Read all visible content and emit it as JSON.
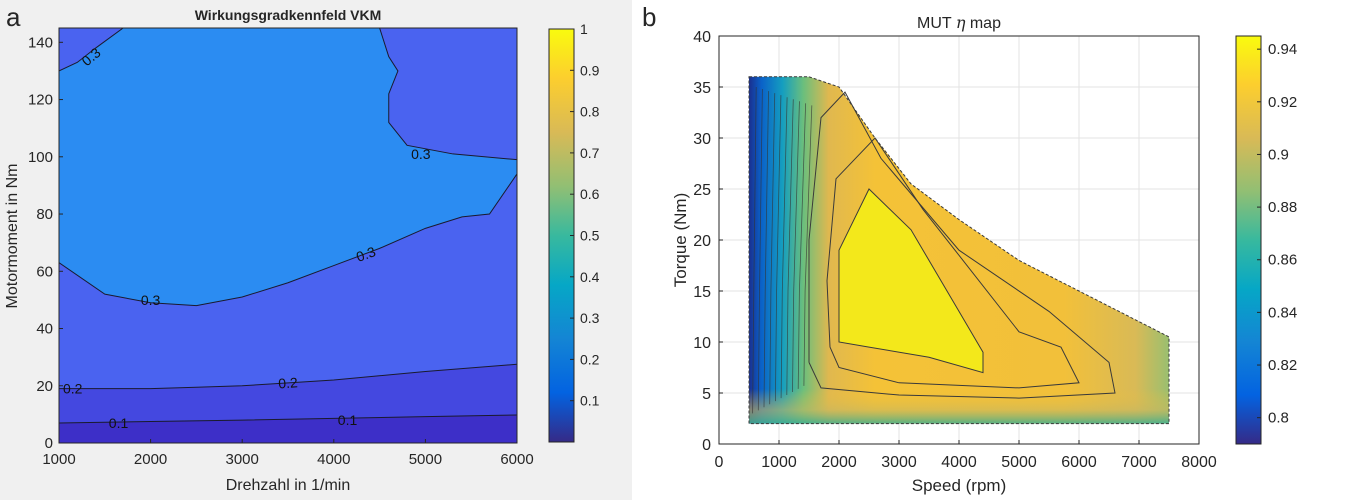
{
  "panels": {
    "a": {
      "label": "a"
    },
    "b": {
      "label": "b"
    }
  },
  "chart_data": [
    {
      "type": "contour",
      "title": "Wirkungsgradkennfeld VKM",
      "xlabel": "Drehzahl in 1/min",
      "ylabel": "Motormoment in Nm",
      "xlim": [
        1000,
        6000
      ],
      "ylim": [
        0,
        145
      ],
      "xticks": [
        1000,
        2000,
        3000,
        4000,
        5000,
        6000
      ],
      "yticks": [
        0,
        20,
        40,
        60,
        80,
        100,
        120,
        140
      ],
      "grid": false,
      "colormap": "parula",
      "colorbar": {
        "min": 0,
        "max": 1,
        "ticks": [
          0.1,
          0.2,
          0.3,
          0.4,
          0.5,
          0.6,
          0.7,
          0.8,
          0.9,
          1
        ],
        "ticklabels": [
          "0.1",
          "0.2",
          "0.3",
          "0.4",
          "0.5",
          "0.6",
          "0.7",
          "0.8",
          "0.9",
          "1"
        ]
      },
      "fill_colors": {
        "below_0.1": "#3d2fc8",
        "0.1_0.2": "#4448e0",
        "0.2_0.3": "#4a63f0",
        "above_0.3": "#2b8cf2"
      },
      "contour_lines": [
        {
          "level": 0.1,
          "points": [
            [
              1000,
              7
            ],
            [
              2000,
              7.5
            ],
            [
              3000,
              8
            ],
            [
              4000,
              8.6
            ],
            [
              5000,
              9.2
            ],
            [
              6000,
              9.8
            ]
          ]
        },
        {
          "level": 0.2,
          "points": [
            [
              1000,
              19
            ],
            [
              2000,
              19
            ],
            [
              2500,
              19.5
            ],
            [
              3000,
              20
            ],
            [
              4000,
              22
            ],
            [
              5000,
              25
            ],
            [
              6000,
              27.5
            ]
          ]
        },
        {
          "level": 0.3,
          "points": [
            [
              1000,
              63
            ],
            [
              1500,
              52
            ],
            [
              2000,
              49
            ],
            [
              2500,
              48
            ],
            [
              3000,
              51
            ],
            [
              3500,
              56
            ],
            [
              4000,
              62
            ],
            [
              4500,
              68
            ],
            [
              5000,
              75
            ],
            [
              5400,
              79
            ],
            [
              5700,
              80
            ],
            [
              6000,
              94
            ]
          ]
        },
        {
          "level": 0.3,
          "points": [
            [
              4500,
              145
            ],
            [
              4600,
              135
            ],
            [
              4700,
              130
            ],
            [
              4600,
              122
            ],
            [
              4600,
              112
            ],
            [
              4800,
              104
            ],
            [
              5300,
              101
            ],
            [
              6000,
              99
            ]
          ]
        },
        {
          "level": 0.3,
          "points": [
            [
              1000,
              130
            ],
            [
              1200,
              133
            ],
            [
              1400,
              138
            ],
            [
              1700,
              145
            ]
          ]
        }
      ],
      "contour_labels": [
        {
          "text": "0.1",
          "x": 1650,
          "y": 7,
          "angle": 0
        },
        {
          "text": "0.1",
          "x": 4150,
          "y": 8,
          "angle": 0
        },
        {
          "text": "0.2",
          "x": 1150,
          "y": 19,
          "angle": 0
        },
        {
          "text": "0.2",
          "x": 3500,
          "y": 21,
          "angle": -4
        },
        {
          "text": "0.3",
          "x": 2000,
          "y": 50,
          "angle": 0
        },
        {
          "text": "0.3",
          "x": 4350,
          "y": 66,
          "angle": -20
        },
        {
          "text": "0.3",
          "x": 4950,
          "y": 101,
          "angle": 0
        },
        {
          "text": "0.3",
          "x": 1350,
          "y": 135,
          "angle": -40
        }
      ]
    },
    {
      "type": "contour",
      "title": "MUT η map",
      "title_parts": [
        "MUT ",
        "η",
        " map"
      ],
      "xlabel": "Speed (rpm)",
      "ylabel": "Torque  (Nm)",
      "xlim": [
        0,
        8000
      ],
      "ylim": [
        0,
        40
      ],
      "xticks": [
        0,
        1000,
        2000,
        3000,
        4000,
        5000,
        6000,
        7000,
        8000
      ],
      "yticks": [
        0,
        5,
        10,
        15,
        20,
        25,
        30,
        35,
        40
      ],
      "grid": true,
      "colormap": "parula",
      "colorbar": {
        "min": 0.79,
        "max": 0.945,
        "ticks": [
          0.8,
          0.82,
          0.84,
          0.86,
          0.88,
          0.9,
          0.92,
          0.94
        ],
        "ticklabels": [
          "0.8",
          "0.82",
          "0.84",
          "0.86",
          "0.88",
          "0.9",
          "0.92",
          "0.94"
        ]
      },
      "boundary": [
        [
          500,
          36
        ],
        [
          1500,
          36
        ],
        [
          2000,
          35
        ],
        [
          2600,
          30
        ],
        [
          3200,
          25.5
        ],
        [
          4000,
          22
        ],
        [
          5000,
          18
        ],
        [
          6000,
          15
        ],
        [
          7000,
          12
        ],
        [
          7500,
          10.5
        ],
        [
          7500,
          2
        ],
        [
          500,
          2
        ]
      ],
      "peak_region": [
        [
          2000,
          10
        ],
        [
          2000,
          19
        ],
        [
          2500,
          25
        ],
        [
          3200,
          21
        ],
        [
          4000,
          13
        ],
        [
          4400,
          9
        ],
        [
          4400,
          7
        ],
        [
          3500,
          8.5
        ],
        [
          2500,
          9.5
        ]
      ],
      "contour_lines": [
        {
          "level": 0.925,
          "points": [
            [
              1850,
              9.5
            ],
            [
              1800,
              16
            ],
            [
              1950,
              26
            ],
            [
              2600,
              30
            ],
            [
              3400,
              23
            ],
            [
              5000,
              11
            ],
            [
              5700,
              9.5
            ],
            [
              6000,
              6
            ],
            [
              5000,
              5.5
            ],
            [
              3000,
              6
            ],
            [
              2000,
              7.5
            ],
            [
              1850,
              9.5
            ]
          ]
        },
        {
          "level": 0.92,
          "points": [
            [
              1500,
              8
            ],
            [
              1500,
              20
            ],
            [
              1700,
              32
            ],
            [
              2100,
              34.5
            ],
            [
              2700,
              28
            ],
            [
              4000,
              19
            ],
            [
              5500,
              13
            ],
            [
              6500,
              8
            ],
            [
              6600,
              5
            ],
            [
              5000,
              4.5
            ],
            [
              3000,
              4.8
            ],
            [
              1700,
              5.5
            ],
            [
              1500,
              8
            ]
          ]
        }
      ]
    }
  ]
}
